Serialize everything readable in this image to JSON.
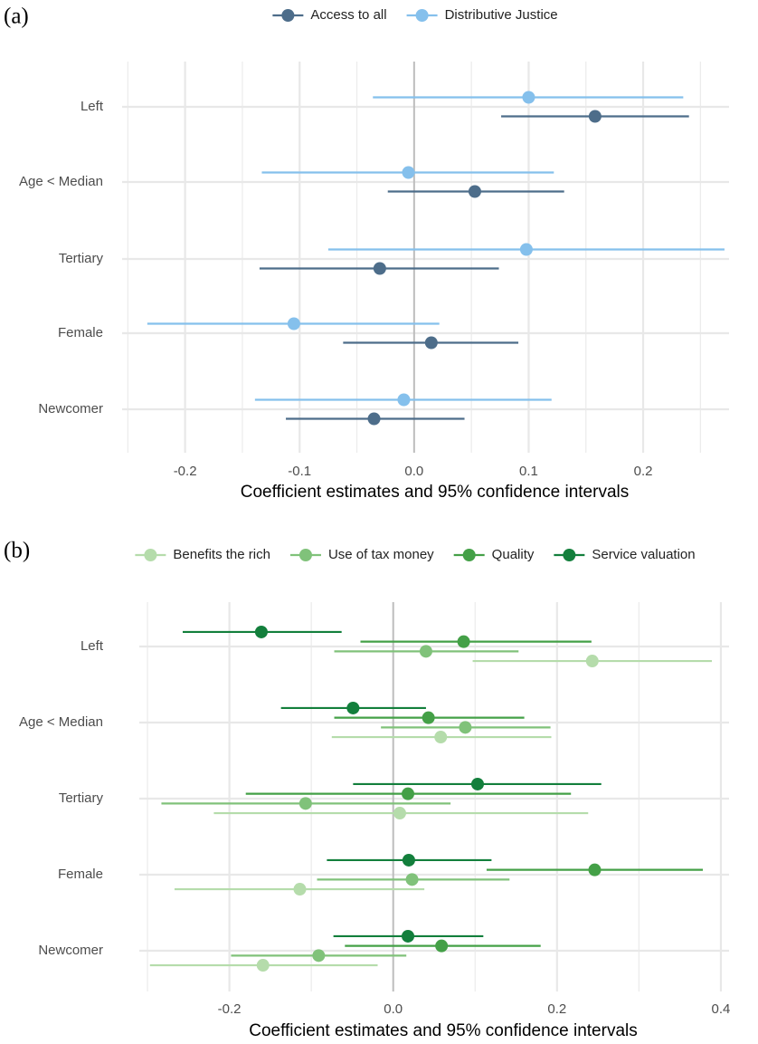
{
  "chart_data": [
    {
      "type": "coefplot",
      "label": "(a)",
      "x_label": "Coefficient estimates and 95% confidence intervals",
      "categories": [
        "Left",
        "Age < Median",
        "Tertiary",
        "Female",
        "Newcomer"
      ],
      "series": [
        {
          "name": "Access to all",
          "color": "#4d6d8a",
          "values": [
            0.158,
            0.053,
            -0.03,
            0.015,
            -0.035
          ],
          "lower": [
            0.076,
            -0.023,
            -0.135,
            -0.062,
            -0.112
          ],
          "upper": [
            0.24,
            0.131,
            0.074,
            0.091,
            0.044
          ]
        },
        {
          "name": "Distributive Justice",
          "color": "#85c0ec",
          "values": [
            0.1,
            -0.005,
            0.098,
            -0.105,
            -0.009
          ],
          "lower": [
            -0.036,
            -0.133,
            -0.075,
            -0.233,
            -0.139
          ],
          "upper": [
            0.235,
            0.122,
            0.271,
            0.022,
            0.12
          ]
        }
      ],
      "xlim": [
        -0.255,
        0.275
      ],
      "xticks": [
        -0.2,
        -0.1,
        {
          "value": 0,
          "label": "0.0"
        },
        0.1,
        0.2
      ],
      "xminor": [
        -0.25,
        -0.15,
        -0.05,
        0.05,
        0.15,
        0.25
      ],
      "grid": true,
      "legend": "top"
    },
    {
      "type": "coefplot",
      "label": "(b)",
      "x_label": "Coefficient estimates and 95% confidence intervals",
      "categories": [
        "Left",
        "Age < Median",
        "Tertiary",
        "Female",
        "Newcomer"
      ],
      "series": [
        {
          "name": "Benefits the rich",
          "color": "#b5dcab",
          "values": [
            0.243,
            0.058,
            0.008,
            -0.114,
            -0.159
          ],
          "lower": [
            0.097,
            -0.075,
            -0.219,
            -0.267,
            -0.297
          ],
          "upper": [
            0.389,
            0.193,
            0.238,
            0.038,
            -0.019
          ]
        },
        {
          "name": "Use of tax money",
          "color": "#80c27a",
          "values": [
            0.04,
            0.088,
            -0.107,
            0.023,
            -0.091
          ],
          "lower": [
            -0.072,
            -0.015,
            -0.283,
            -0.093,
            -0.198
          ],
          "upper": [
            0.153,
            0.192,
            0.07,
            0.142,
            0.016
          ]
        },
        {
          "name": "Quality",
          "color": "#44a047",
          "values": [
            0.086,
            0.043,
            0.018,
            0.246,
            0.059
          ],
          "lower": [
            -0.04,
            -0.072,
            -0.18,
            0.114,
            -0.059
          ],
          "upper": [
            0.242,
            0.16,
            0.217,
            0.378,
            0.18
          ]
        },
        {
          "name": "Service valuation",
          "color": "#137f3c",
          "values": [
            -0.161,
            -0.049,
            0.103,
            0.019,
            0.018
          ],
          "lower": [
            -0.257,
            -0.137,
            -0.049,
            -0.081,
            -0.073
          ],
          "upper": [
            -0.063,
            0.04,
            0.254,
            0.12,
            0.11
          ]
        }
      ],
      "xlim": [
        -0.31,
        0.41
      ],
      "xticks": [
        -0.2,
        {
          "value": 0,
          "label": "0.0"
        },
        0.2,
        0.4
      ],
      "xminor": [
        -0.3,
        -0.1,
        0.1,
        0.3
      ],
      "grid": true,
      "legend": "top"
    }
  ]
}
